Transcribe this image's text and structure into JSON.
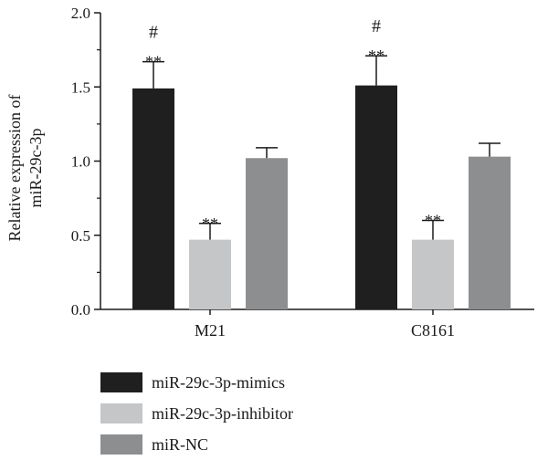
{
  "chart_data": {
    "type": "bar",
    "title": "",
    "xlabel": "",
    "ylabel_lines": [
      "Relative expression of",
      "miR-29c-3p"
    ],
    "ylim": [
      0,
      2.0
    ],
    "yticks": [
      "0.0",
      "0.5",
      "1.0",
      "1.5",
      "2.0"
    ],
    "categories": [
      "M21",
      "C8161"
    ],
    "series": [
      {
        "name": "miR-29c-3p-mimics",
        "color": "#1f1f1f",
        "values": [
          1.49,
          1.51
        ],
        "errors": [
          0.18,
          0.2
        ],
        "annotations": [
          [
            "#",
            "**"
          ],
          [
            "#",
            "**"
          ]
        ]
      },
      {
        "name": "miR-29c-3p-inhibitor",
        "color": "#c4c6c8",
        "values": [
          0.47,
          0.47
        ],
        "errors": [
          0.11,
          0.13
        ],
        "annotations": [
          [
            "**"
          ],
          [
            "**"
          ]
        ]
      },
      {
        "name": "miR-NC",
        "color": "#8c8e90",
        "values": [
          1.02,
          1.03
        ],
        "errors": [
          0.07,
          0.09
        ],
        "annotations": [
          [],
          []
        ]
      }
    ],
    "grid": false,
    "legend_position": "bottom-left"
  }
}
